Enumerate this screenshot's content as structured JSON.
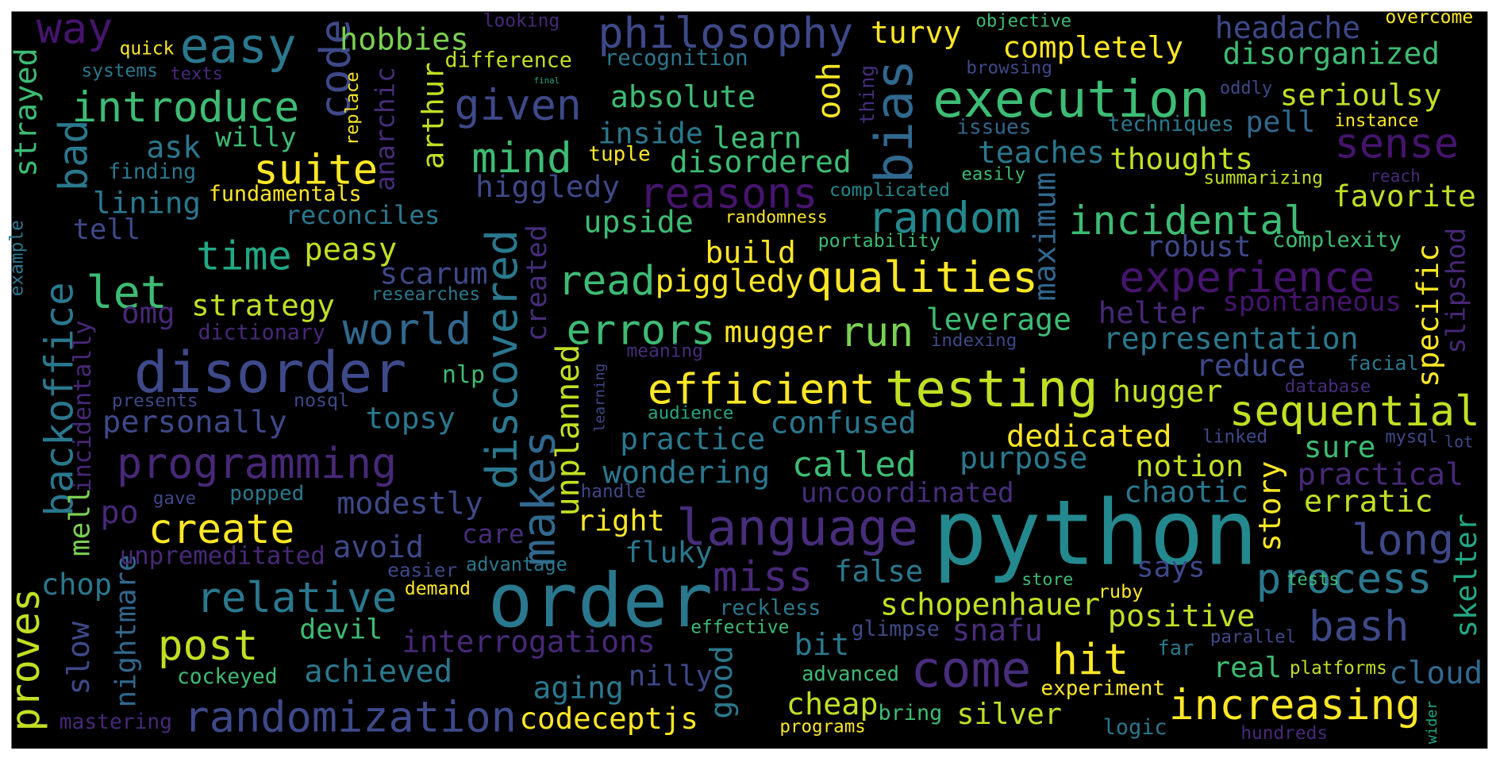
{
  "words": [
    "python",
    "order",
    "disorder",
    "testing",
    "execution",
    "language",
    "come",
    "hit",
    "programming",
    "randomization",
    "qualities",
    "efficient",
    "philosophy",
    "easy",
    "introduce",
    "incidental",
    "experience",
    "random",
    "increasing",
    "sequential",
    "process",
    "long",
    "bash",
    "create",
    "post",
    "relative",
    "time",
    "let",
    "world",
    "errors",
    "read",
    "piggledy",
    "called",
    "run",
    "mind",
    "given",
    "reasons",
    "suite",
    "miss",
    "sense",
    "way",
    "bias",
    "code",
    "backoffice",
    "bad",
    "proves",
    "discovered",
    "makes",
    "created",
    "unplanned",
    "slow",
    "nightmare",
    "mell",
    "incidentally",
    "strayed",
    "example",
    "arthur",
    "anarchic",
    "replace",
    "ooh",
    "thing",
    "maximum",
    "specific",
    "slipshod",
    "skelter",
    "story",
    "good",
    "learning",
    "wider",
    "hobbies",
    "quick",
    "systems",
    "texts",
    "difference",
    "final",
    "looking",
    "objective",
    "overcome",
    "recognition",
    "turvy",
    "completely",
    "headache",
    "disorganized",
    "browsing",
    "oddly",
    "absolute",
    "serioulsy",
    "inside",
    "learn",
    "issues",
    "techniques",
    "pell",
    "instance",
    "ask",
    "willy",
    "tuple",
    "disordered",
    "teaches",
    "thoughts",
    "finding",
    "fundamentals",
    "complicated",
    "easily",
    "summarizing",
    "reach",
    "higgledy",
    "favorite",
    "lining",
    "reconciles",
    "tell",
    "upside",
    "randomness",
    "complexity",
    "portability",
    "build",
    "peasy",
    "robust",
    "scarum",
    "researches",
    "strategy",
    "omg",
    "leverage",
    "helter",
    "spontaneous",
    "dictionary",
    "mugger",
    "indexing",
    "representation",
    "meaning",
    "facial",
    "reduce",
    "nlp",
    "hugger",
    "presents",
    "nosql",
    "topsy",
    "database",
    "audience",
    "personally",
    "confused",
    "dedicated",
    "practice",
    "linked",
    "mysql",
    "lot",
    "sure",
    "purpose",
    "notion",
    "practical",
    "wondering",
    "uncoordinated",
    "chaotic",
    "erratic",
    "modestly",
    "handle",
    "gave",
    "popped",
    "po",
    "right",
    "care",
    "avoid",
    "unpremeditated",
    "fluky",
    "says",
    "advantage",
    "easier",
    "tests",
    "false",
    "store",
    "chop",
    "demand",
    "ruby",
    "schopenhauer",
    "reckless",
    "positive",
    "devil",
    "effective",
    "glimpse",
    "snafu",
    "interrogations",
    "parallel",
    "bit",
    "far",
    "achieved",
    "nilly",
    "cockeyed",
    "advanced",
    "real",
    "platforms",
    "cloud",
    "experiment",
    "aging",
    "cheap",
    "bring",
    "mastering",
    "codeceptjs",
    "silver",
    "programs",
    "logic",
    "hundreds"
  ]
}
